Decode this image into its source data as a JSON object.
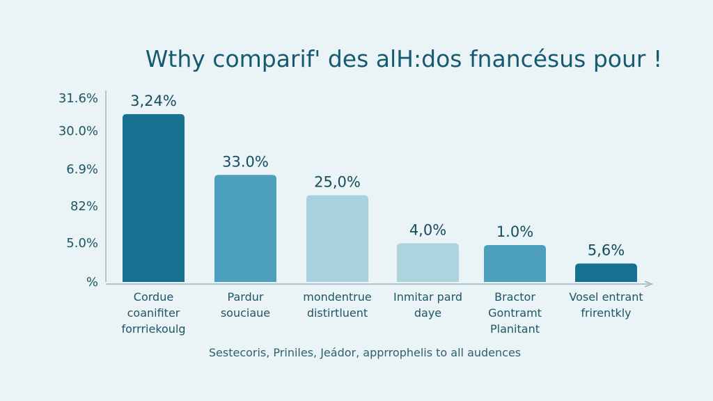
{
  "chart_data": {
    "type": "bar",
    "title": "Wthy comparif' des alH:dos fnancésus pour !",
    "caption": "Sestecoris, Priniles, Jeádor, apprrophelis to all audences",
    "categories": [
      "Cordue coanifiter forrriekoulg",
      "Pardur souciaue",
      "mondentrue distirtluent",
      "Inmitar pard daye",
      "Bractor Gontramt Planitant",
      "Vosel entrant frirentkly"
    ],
    "category_lines": [
      [
        "Cordue",
        "coanifiter",
        "forrriekoulg"
      ],
      [
        "Pardur",
        "souciaue"
      ],
      [
        "mondentrue",
        "distirtluent"
      ],
      [
        "Inmitar pard",
        "daye"
      ],
      [
        "Bractor",
        "Gontramt",
        "Planitant"
      ],
      [
        "Vosel entrant",
        "frirentkly"
      ]
    ],
    "data_labels": [
      "3,24%",
      "33.0%",
      "25,0%",
      "4,0%",
      "1.0%",
      "5,6%"
    ],
    "levels": [
      0.91,
      0.58,
      0.47,
      0.21,
      0.2,
      0.1
    ],
    "y_tick_labels": [
      "31.6%",
      "30.0%",
      "6.9%",
      "82%",
      "5.0%",
      "%"
    ],
    "colors": [
      "#17708f",
      "#4c9fbd",
      "#a7d1de",
      "#abd4df",
      "#4c9fbd",
      "#16708f"
    ],
    "grid": false,
    "legend": "none"
  }
}
